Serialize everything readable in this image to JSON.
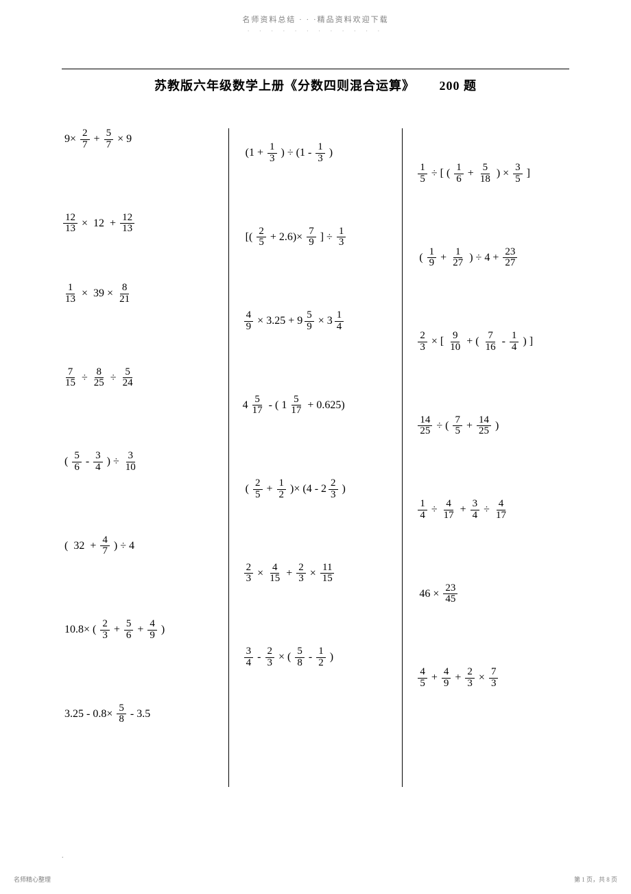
{
  "header": {
    "top_text": "名师资料总结 · · ·精品资料欢迎下载",
    "top_dots": "· · · · · · · · · · · ·",
    "title_main": "苏教版六年级数学上册《分数四则混合运算》",
    "title_count": "200 题"
  },
  "footer": {
    "left": "名师精心整理",
    "right": "第 1 页，共 8 页",
    "dot": "."
  },
  "problems": {
    "left": [
      {
        "parts": [
          "9×",
          "f:2/7",
          "+",
          "f:5/7",
          "× 9"
        ]
      },
      {
        "parts": [
          "f:12/13",
          "×",
          "12",
          "+",
          "f:12/13"
        ]
      },
      {
        "parts": [
          "f:1/13",
          "×",
          "39 ×",
          "f:8/21"
        ]
      },
      {
        "parts": [
          "f:7/15",
          "÷",
          "f:8/25",
          "÷",
          "f:5/24"
        ]
      },
      {
        "parts": [
          "(",
          "f:5/6",
          "-",
          "f:3/4",
          ") ÷",
          "f:3/10"
        ]
      },
      {
        "parts": [
          "(",
          "32",
          "+",
          "f:4/7",
          ") ÷ 4"
        ]
      },
      {
        "parts": [
          "10.8× (",
          "f:2/3",
          "+",
          "f:5/6",
          "+",
          "f:4/9",
          ")"
        ]
      },
      {
        "parts": [
          "3.25 - 0.8×",
          "f:5/8",
          "- 3.5"
        ]
      }
    ],
    "mid": [
      {
        "parts": [
          "(1 +",
          "f:1/3",
          ") ÷ (1 -",
          "f:1/3",
          ")"
        ]
      },
      {
        "parts": [
          "[(",
          "f:2/5",
          "+ 2.6)×",
          "f:7/9",
          "] ÷",
          "f:1/3"
        ]
      },
      {
        "parts": [
          "f:4/9",
          "× 3.25 +",
          "m:9:5/9",
          "×",
          "m:3:1/4"
        ]
      },
      {
        "parts": [
          "m:4:5/17",
          "- (",
          "m:1:5/17",
          "+ 0.625)"
        ]
      },
      {
        "parts": [
          "(",
          "f:2/5",
          "+",
          "f:1/2",
          ")× (4 -",
          "m:2:2/3",
          ")"
        ]
      },
      {
        "parts": [
          "f:2/3",
          "×",
          "f:4/15",
          "+",
          "f:2/3",
          "×",
          "f:11/15"
        ]
      },
      {
        "parts": [
          "f:3/4",
          "-",
          "f:2/3",
          "× (",
          "f:5/8",
          "-",
          "f:1/2",
          ")"
        ]
      }
    ],
    "right": [
      {
        "parts": [
          "f:1/5",
          "÷ [ (",
          "f:1/6",
          "+",
          "f:5/18",
          ") ×",
          "f:3/5",
          "]"
        ]
      },
      {
        "parts": [
          "(",
          "f:1/9",
          "+",
          "f:1/27",
          ") ÷ 4 +",
          "f:23/27"
        ]
      },
      {
        "parts": [
          "f:2/3",
          "× [",
          "f:9/10",
          "+ (",
          "f:7/16",
          "-",
          "f:1/4",
          ") ]"
        ]
      },
      {
        "parts": [
          "f:14/25",
          "÷ (",
          "f:7/5",
          "+",
          "f:14/25",
          ")"
        ]
      },
      {
        "parts": [
          "f:1/4",
          "÷",
          "f:4/17",
          "+",
          "f:3/4",
          "÷",
          "f:4/17"
        ]
      },
      {
        "parts": [
          "46 ×",
          "f:23/45"
        ]
      },
      {
        "parts": [
          "f:4/5",
          "+",
          "f:4/9",
          "+",
          "f:2/3",
          "×",
          "f:7/3"
        ]
      }
    ]
  }
}
